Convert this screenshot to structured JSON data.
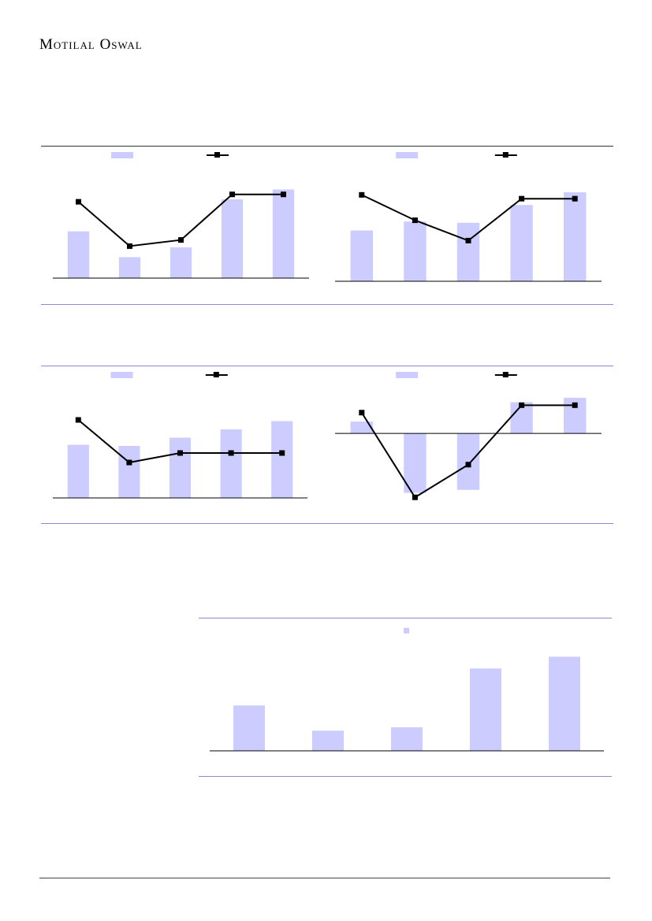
{
  "brand": {
    "name": "Motilal Oswal"
  },
  "colors": {
    "bar": "#ccccff",
    "line": "#000000",
    "rule_blue": "#8a8ad0",
    "rule_dark": "#333333"
  },
  "charts": [
    {
      "type": "bar+line",
      "bars": [
        38,
        17,
        25,
        64,
        72
      ],
      "line": [
        62,
        26,
        31,
        68,
        68
      ],
      "ylim": [
        0,
        80
      ]
    },
    {
      "type": "bar+line",
      "bars": [
        40,
        47,
        46,
        60,
        70
      ],
      "line": [
        68,
        48,
        32,
        65,
        65
      ],
      "ylim": [
        0,
        80
      ]
    },
    {
      "type": "bar+line",
      "bars": [
        45,
        44,
        51,
        58,
        65
      ],
      "line": [
        66,
        30,
        38,
        38,
        38
      ],
      "ylim": [
        0,
        80
      ]
    },
    {
      "type": "bar+line",
      "bars": [
        8,
        -40,
        -38,
        21,
        24
      ],
      "line": [
        14,
        -43,
        -21,
        19,
        19
      ],
      "ylim": [
        -45,
        25
      ]
    },
    {
      "type": "bar",
      "bars": [
        27,
        12,
        14,
        49,
        56
      ],
      "ylim": [
        0,
        60
      ]
    }
  ]
}
